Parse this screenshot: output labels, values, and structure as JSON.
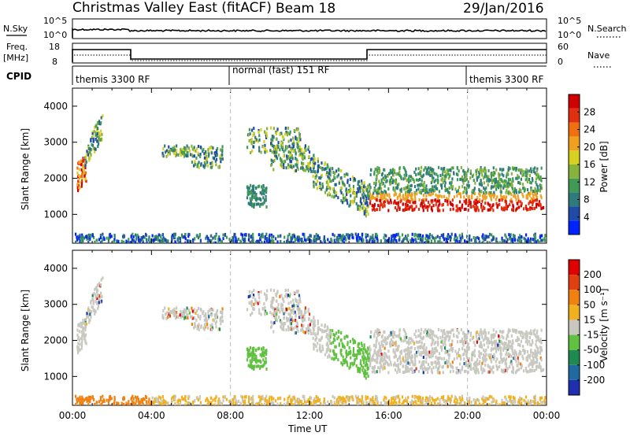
{
  "header": {
    "title": "Christmas Valley East (fitACF)",
    "beam": "Beam 18",
    "date": "29/Jan/2016"
  },
  "strip_panels": {
    "nsky_label": "N.Sky",
    "nsky_ticks": [
      "10^5",
      "10^0"
    ],
    "nsearch_label": "N.Search",
    "nsearch_ticks": [
      "10^5",
      "10^0"
    ],
    "freq_label_1": "Freq.",
    "freq_label_2": "[MHz]",
    "freq_ticks": [
      "18",
      "8"
    ],
    "nave_label": "Nave",
    "nave_ticks": [
      "60",
      "0"
    ],
    "cpid_label": "CPID",
    "cpid_segments": [
      {
        "label": "themis 3300 RF",
        "start_hr": 0,
        "end_hr": 8
      },
      {
        "label": "normal (fast) 151 RF",
        "start_hr": 8,
        "end_hr": 20
      },
      {
        "label": "themis 3300 RF",
        "start_hr": 20,
        "end_hr": 24
      }
    ]
  },
  "chart_data": [
    {
      "type": "heatmap",
      "name": "power",
      "ylabel": "Slant Range [km]",
      "ylim": [
        200,
        4500
      ],
      "yticks": [
        "1000",
        "2000",
        "3000",
        "4000"
      ],
      "colorbar_label": "Power [dB]",
      "colorbar_ticks": [
        "28",
        "24",
        "20",
        "16",
        "12",
        "8",
        "4"
      ],
      "colorbar_colors": [
        "#0022ff",
        "#1f4aa8",
        "#2f7a7a",
        "#3f9a55",
        "#86b33c",
        "#d8d020",
        "#f0a020",
        "#f07010",
        "#e03010",
        "#d00000"
      ]
    },
    {
      "type": "heatmap",
      "name": "velocity",
      "ylabel": "Slant Range [km]",
      "ylim": [
        200,
        4500
      ],
      "yticks": [
        "1000",
        "2000",
        "3000",
        "4000"
      ],
      "colorbar_label": "Velocity [m s⁻¹]",
      "colorbar_ticks": [
        "200",
        "100",
        "50",
        "15",
        "-15",
        "-50",
        "-100",
        "-200"
      ],
      "colorbar_colors": [
        "#1f2fb0",
        "#1f6aa0",
        "#1e8a50",
        "#60c040",
        "#c8c8c0",
        "#f0b020",
        "#f08010",
        "#e04010",
        "#e00000"
      ],
      "xlabel": "Time UT",
      "xticks": [
        "00:00",
        "04:00",
        "08:00",
        "12:00",
        "16:00",
        "20:00",
        "00:00"
      ],
      "xlim_hours": [
        0,
        24
      ]
    }
  ]
}
